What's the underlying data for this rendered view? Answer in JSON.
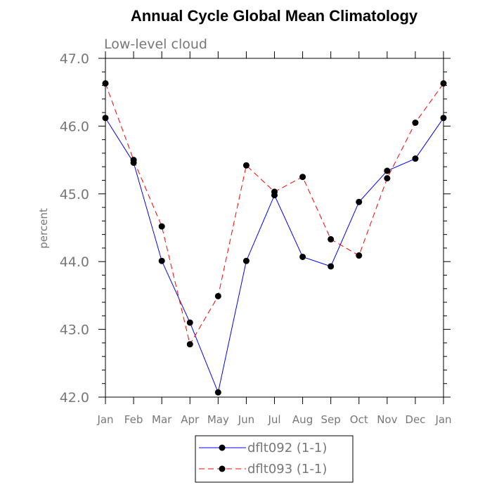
{
  "chart_data": {
    "type": "line",
    "title": "Annual Cycle Global Mean Climatology",
    "subtitle": "Low-level cloud",
    "xlabel": "",
    "ylabel": "percent",
    "categories": [
      "Jan",
      "Feb",
      "Mar",
      "Apr",
      "May",
      "Jun",
      "Jul",
      "Aug",
      "Sep",
      "Oct",
      "Nov",
      "Dec",
      "Jan"
    ],
    "ylim": [
      42.0,
      47.0
    ],
    "yticks": [
      "42.0",
      "43.0",
      "44.0",
      "45.0",
      "46.0",
      "47.0"
    ],
    "series": [
      {
        "name": "dflt092 (1-1)",
        "color": "#0000ff",
        "line_style": "solid",
        "values": [
          46.12,
          45.46,
          44.01,
          43.1,
          42.07,
          44.01,
          44.98,
          44.07,
          43.93,
          44.88,
          45.34,
          45.52,
          46.12
        ]
      },
      {
        "name": "dflt093 (1-1)",
        "color": "#ff0000",
        "line_style": "dashed",
        "values": [
          46.63,
          45.5,
          44.52,
          42.78,
          43.49,
          45.42,
          45.03,
          45.25,
          44.33,
          44.09,
          45.23,
          46.05,
          46.63
        ]
      }
    ],
    "grid": false,
    "legend_placement": "bottom-center"
  }
}
